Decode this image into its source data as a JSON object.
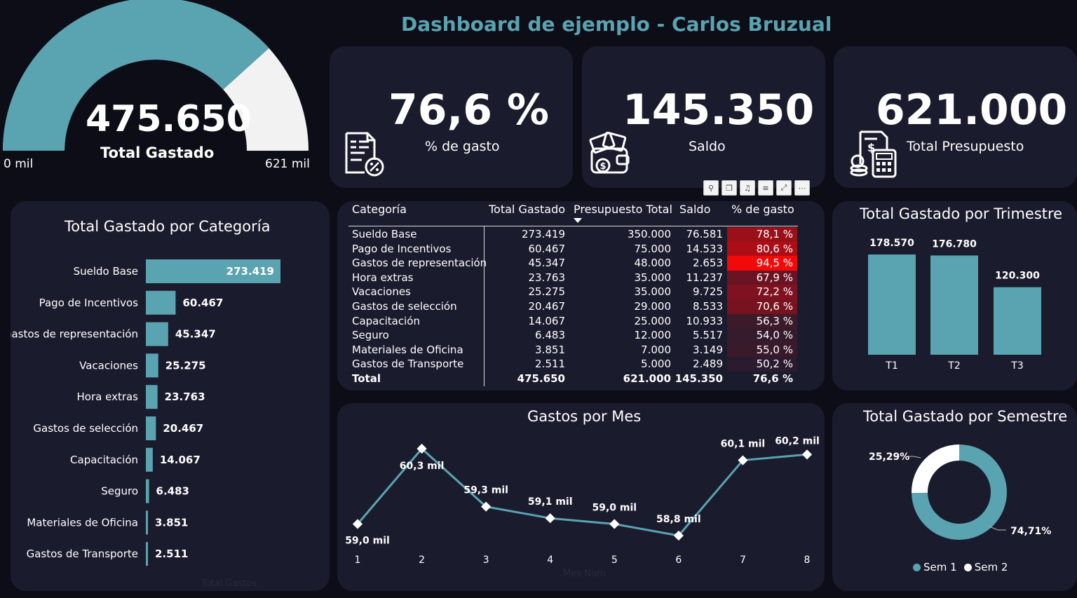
{
  "dashboard_title": "Dashboard de ejemplo - Carlos Bruzual",
  "gauge": {
    "value_label": "475.650",
    "label": "Total Gastado",
    "min_label": "0 mil",
    "max_label": "621 mil",
    "value": 475650,
    "max": 621000,
    "fill_color": "#5aa3b0",
    "rest_color": "#f2f2f2"
  },
  "kpis": [
    {
      "value": "76,6 %",
      "label": "% de gasto",
      "icon": "invoice-percent-icon"
    },
    {
      "value": "145.350",
      "label": "Saldo",
      "icon": "wallet-money-icon"
    },
    {
      "value": "621.000",
      "label": "Total Presupuesto",
      "icon": "budget-calculator-icon"
    }
  ],
  "toolbar_icons": [
    "pin-icon",
    "copy-icon",
    "bell-icon",
    "filter-icon",
    "expand-icon",
    "more-icon"
  ],
  "table": {
    "headers": [
      "Categoría",
      "Total Gastado",
      "Presupuesto Total",
      "Saldo",
      "% de gasto"
    ],
    "rows": [
      {
        "cat": "Sueldo Base",
        "gastado": "273.419",
        "presupuesto": "350.000",
        "saldo": "76.581",
        "pct": "78,1 %",
        "heat": "#9b0f18"
      },
      {
        "cat": "Pago de Incentivos",
        "gastado": "60.467",
        "presupuesto": "75.000",
        "saldo": "14.533",
        "pct": "80,6 %",
        "heat": "#ad0d16"
      },
      {
        "cat": "Gastos de representación",
        "gastado": "45.347",
        "presupuesto": "48.000",
        "saldo": "2.653",
        "pct": "94,5 %",
        "heat": "#f20a0a"
      },
      {
        "cat": "Hora extras",
        "gastado": "23.763",
        "presupuesto": "35.000",
        "saldo": "11.237",
        "pct": "67,9 %",
        "heat": "#6a1423"
      },
      {
        "cat": "Vacaciones",
        "gastado": "25.275",
        "presupuesto": "35.000",
        "saldo": "9.725",
        "pct": "72,2 %",
        "heat": "#7f1220"
      },
      {
        "cat": "Gastos de selección",
        "gastado": "20.467",
        "presupuesto": "29.000",
        "saldo": "8.533",
        "pct": "70,6 %",
        "heat": "#76131f"
      },
      {
        "cat": "Capacitación",
        "gastado": "14.067",
        "presupuesto": "25.000",
        "saldo": "10.933",
        "pct": "56,3 %",
        "heat": "#3d1a2a"
      },
      {
        "cat": "Seguro",
        "gastado": "6.483",
        "presupuesto": "12.000",
        "saldo": "5.517",
        "pct": "54,0 %",
        "heat": "#351b2c"
      },
      {
        "cat": "Materiales de Oficina",
        "gastado": "3.851",
        "presupuesto": "7.000",
        "saldo": "3.149",
        "pct": "55,0 %",
        "heat": "#381a2b"
      },
      {
        "cat": "Gastos de Transporte",
        "gastado": "2.511",
        "presupuesto": "5.000",
        "saldo": "2.489",
        "pct": "50,2 %",
        "heat": "#2a1c2e"
      }
    ],
    "total": {
      "cat": "Total",
      "gastado": "475.650",
      "presupuesto": "621.000",
      "saldo": "145.350",
      "pct": "76,6 %"
    }
  },
  "chart_data": [
    {
      "type": "bar",
      "orientation": "horizontal",
      "title": "Total Gastado por Categoría",
      "xlabel": "Total Gastos",
      "categories": [
        "Sueldo Base",
        "Pago de Incentivos",
        "Gastos de representación",
        "Vacaciones",
        "Hora extras",
        "Gastos de selección",
        "Capacitación",
        "Seguro",
        "Materiales de Oficina",
        "Gastos de Transporte"
      ],
      "values": [
        273419,
        60467,
        45347,
        25275,
        23763,
        20467,
        14067,
        6483,
        3851,
        2511
      ],
      "labels": [
        "273.419",
        "60.467",
        "45.347",
        "25.275",
        "23.763",
        "20.467",
        "14.067",
        "6.483",
        "3.851",
        "2.511"
      ],
      "color": "#5aa3b0"
    },
    {
      "type": "bar",
      "title": "Total Gastado por Trimestre",
      "categories": [
        "T1",
        "T2",
        "T3"
      ],
      "values": [
        178570,
        176780,
        120300
      ],
      "labels": [
        "178.570",
        "176.780",
        "120.300"
      ],
      "color": "#5aa3b0"
    },
    {
      "type": "line",
      "title": "Gastos por Mes",
      "xlabel": "Mes Num",
      "x": [
        1,
        2,
        3,
        4,
        5,
        6,
        7,
        8
      ],
      "values": [
        59.0,
        60.3,
        59.3,
        59.1,
        59.0,
        58.8,
        60.1,
        60.2
      ],
      "labels": [
        "59,0 mil",
        "60,3 mil",
        "59,3 mil",
        "59,1 mil",
        "59,0 mil",
        "58,8 mil",
        "60,1 mil",
        "60,2 mil"
      ],
      "color": "#5aa3b0"
    },
    {
      "type": "pie",
      "style": "donut",
      "title": "Total Gastado por Semestre",
      "categories": [
        "Sem 1",
        "Sem 2"
      ],
      "values": [
        74.71,
        25.29
      ],
      "labels": [
        "74,71%",
        "25,29%"
      ],
      "colors": [
        "#5aa3b0",
        "#ffffff"
      ],
      "legend": "bottom"
    }
  ]
}
